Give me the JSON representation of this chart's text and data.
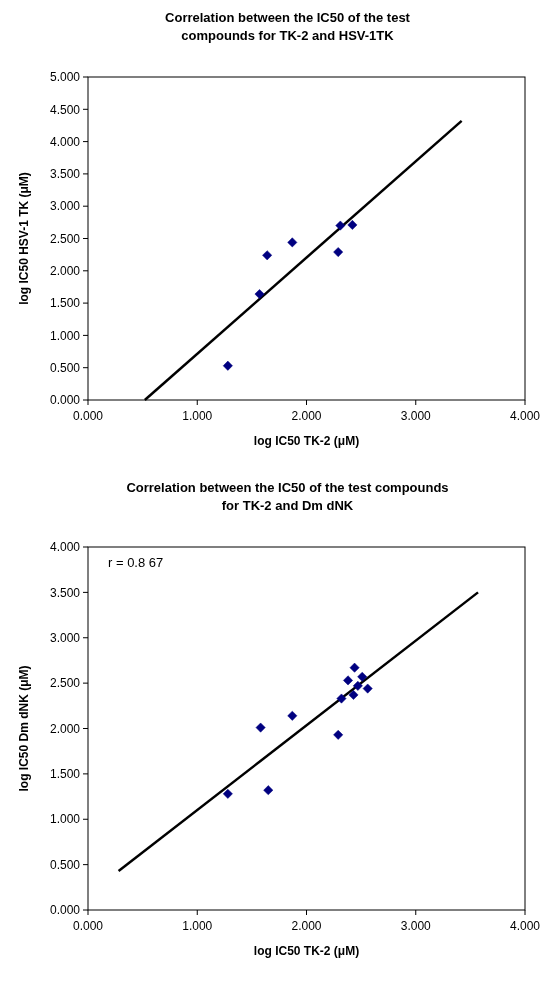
{
  "chart_data": [
    {
      "type": "scatter",
      "title": "Correlation between the IC50 of the test\ncompounds for TK-2 and HSV-1TK",
      "xlabel": "log IC50 TK-2 (μM)",
      "ylabel": "log IC50 HSV-1 TK (μM)",
      "xlim": [
        0,
        4
      ],
      "ylim": [
        0,
        5
      ],
      "xticks": [
        {
          "value": 0,
          "label": "0.000"
        },
        {
          "value": 1,
          "label": "1.000"
        },
        {
          "value": 2,
          "label": "2.000"
        },
        {
          "value": 3,
          "label": "3.000"
        },
        {
          "value": 4,
          "label": "4.000"
        }
      ],
      "yticks": [
        {
          "value": 0,
          "label": "0.000"
        },
        {
          "value": 0.5,
          "label": "0.500"
        },
        {
          "value": 1,
          "label": "1.000"
        },
        {
          "value": 1.5,
          "label": "1.500"
        },
        {
          "value": 2,
          "label": "2.000"
        },
        {
          "value": 2.5,
          "label": "2.500"
        },
        {
          "value": 3,
          "label": "3.000"
        },
        {
          "value": 3.5,
          "label": "3.500"
        },
        {
          "value": 4,
          "label": "4.000"
        },
        {
          "value": 4.5,
          "label": "4.500"
        },
        {
          "value": 5,
          "label": "5.000"
        }
      ],
      "grid": false,
      "series": [
        {
          "color": "#000080",
          "marker": "diamond",
          "x": [
            1.28,
            1.57,
            1.64,
            1.87,
            2.29,
            2.31,
            2.42
          ],
          "values": [
            0.53,
            1.64,
            2.24,
            2.44,
            2.29,
            2.7,
            2.71
          ]
        },
        {
          "type": "line",
          "color": "#000000",
          "marker": "none",
          "line_style": "solid",
          "x": [
            0.52,
            3.42
          ],
          "values": [
            0,
            4.32
          ]
        }
      ]
    },
    {
      "type": "scatter",
      "title": "Correlation between the IC50 of the test compounds\nfor TK-2 and Dm dNK",
      "xlabel": "log IC50 TK-2 (μM)",
      "ylabel": "log IC50 Dm dNK (μM)",
      "annotations": [
        "r = 0.8 67"
      ],
      "xlim": [
        0,
        4
      ],
      "ylim": [
        0,
        4
      ],
      "xticks": [
        {
          "value": 0,
          "label": "0.000"
        },
        {
          "value": 1,
          "label": "1.000"
        },
        {
          "value": 2,
          "label": "2.000"
        },
        {
          "value": 3,
          "label": "3.000"
        },
        {
          "value": 4,
          "label": "4.000"
        }
      ],
      "yticks": [
        {
          "value": 0,
          "label": "0.000"
        },
        {
          "value": 0.5,
          "label": "0.500"
        },
        {
          "value": 1,
          "label": "1.000"
        },
        {
          "value": 1.5,
          "label": "1.500"
        },
        {
          "value": 2,
          "label": "2.000"
        },
        {
          "value": 2.5,
          "label": "2.500"
        },
        {
          "value": 3,
          "label": "3.000"
        },
        {
          "value": 3.5,
          "label": "3.500"
        },
        {
          "value": 4,
          "label": "4.000"
        }
      ],
      "grid": false,
      "series": [
        {
          "color": "#000080",
          "marker": "diamond",
          "x": [
            1.28,
            1.58,
            1.65,
            1.87,
            2.29,
            2.32,
            2.38,
            2.43,
            2.44,
            2.47,
            2.51,
            2.56
          ],
          "values": [
            1.28,
            2.01,
            1.32,
            2.14,
            1.93,
            2.33,
            2.53,
            2.37,
            2.67,
            2.47,
            2.57,
            2.44
          ]
        },
        {
          "type": "line",
          "color": "#000000",
          "marker": "none",
          "line_style": "solid",
          "x": [
            0.28,
            3.57
          ],
          "values": [
            0.43,
            3.5
          ]
        }
      ]
    }
  ]
}
